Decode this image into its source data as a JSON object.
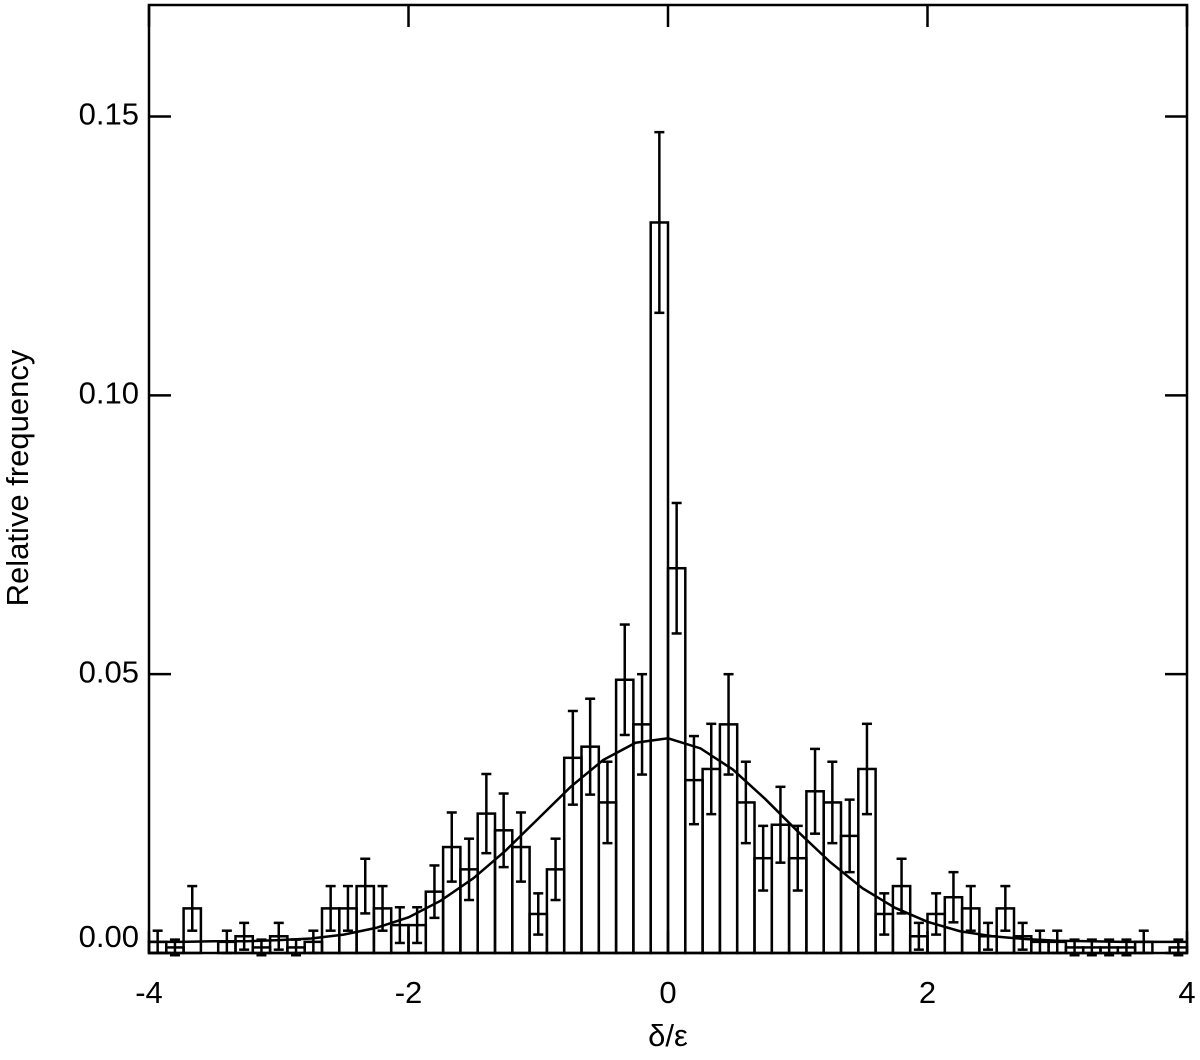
{
  "chart_data": {
    "type": "histogram",
    "xlabel": "δ/ε",
    "ylabel": "Relative frequency",
    "xlim": [
      -4,
      4
    ],
    "ylim": [
      0,
      0.17
    ],
    "xticks": [
      -4,
      -2,
      0,
      2,
      4
    ],
    "yticks": [
      {
        "value": 0,
        "label": "0.00"
      },
      {
        "value": 0.05,
        "label": "0.05"
      },
      {
        "value": 0.1,
        "label": "0.10"
      },
      {
        "value": 0.15,
        "label": "0.15"
      }
    ],
    "color": "#000000",
    "bins": [
      -4,
      -3.8667,
      -3.7333,
      -3.6,
      -3.4667,
      -3.3333,
      -3.2,
      -3.0667,
      -2.9333,
      -2.8,
      -2.6667,
      -2.5333,
      -2.4,
      -2.2667,
      -2.1333,
      -2,
      -1.8667,
      -1.7333,
      -1.6,
      -1.4667,
      -1.3333,
      -1.2,
      -1.0667,
      -0.9333,
      -0.8,
      -0.6667,
      -0.5333,
      -0.4,
      -0.2667,
      -0.1333,
      0,
      0.1333,
      0.2667,
      0.4,
      0.5333,
      0.6667,
      0.8,
      0.9333,
      1.0667,
      1.2,
      1.3333,
      1.4667,
      1.6,
      1.7333,
      1.8667,
      2,
      2.1333,
      2.2667,
      2.4,
      2.5333,
      2.6667,
      2.8,
      2.9333,
      3.0667,
      3.2,
      3.3333,
      3.4667,
      3.6,
      3.7333,
      3.8667,
      4
    ],
    "values": [
      0.002,
      0.001,
      0.008,
      0,
      0.002,
      0.003,
      0.001,
      0.003,
      0.001,
      0.002,
      0.008,
      0.008,
      0.012,
      0.008,
      0.005,
      0.005,
      0.011,
      0.019,
      0.015,
      0.025,
      0.022,
      0.019,
      0.007,
      0.015,
      0.035,
      0.037,
      0.027,
      0.049,
      0.041,
      0.131,
      0.069,
      0.031,
      0.033,
      0.041,
      0.027,
      0.017,
      0.023,
      0.017,
      0.029,
      0.027,
      0.021,
      0.033,
      0.007,
      0.012,
      0.003,
      0.007,
      0.01,
      0.008,
      0.003,
      0.008,
      0.003,
      0.002,
      0.002,
      0.001,
      0.001,
      0.001,
      0.001,
      0.002,
      0,
      0.001
    ],
    "errors": [
      0.002,
      0.0014,
      0.004,
      0,
      0.002,
      0.0024,
      0.0014,
      0.0024,
      0.0014,
      0.002,
      0.004,
      0.004,
      0.0049,
      0.004,
      0.0032,
      0.0032,
      0.0047,
      0.0062,
      0.0055,
      0.0071,
      0.0066,
      0.0062,
      0.0037,
      0.0055,
      0.0084,
      0.0086,
      0.0073,
      0.0099,
      0.009,
      0.0162,
      0.0117,
      0.0079,
      0.0081,
      0.009,
      0.0073,
      0.0058,
      0.0068,
      0.0058,
      0.0076,
      0.0073,
      0.0065,
      0.0081,
      0.0037,
      0.0049,
      0.0024,
      0.0037,
      0.0045,
      0.004,
      0.0024,
      0.004,
      0.0024,
      0.002,
      0.002,
      0.0014,
      0.0014,
      0.0014,
      0.0014,
      0.002,
      0,
      0.0014
    ],
    "fit": {
      "x": [
        -4,
        -3.75,
        -3.5,
        -3.25,
        -3,
        -2.75,
        -2.5,
        -2.25,
        -2,
        -1.75,
        -1.5,
        -1.25,
        -1,
        -0.75,
        -0.5,
        -0.25,
        0,
        0.25,
        0.5,
        0.75,
        1,
        1.25,
        1.5,
        1.75,
        2,
        2.25,
        2.5,
        2.75,
        3,
        3.25,
        3.5,
        3.75,
        4
      ],
      "y": [
        0.002,
        0.002,
        0.0021,
        0.0021,
        0.0023,
        0.0026,
        0.0033,
        0.0045,
        0.0064,
        0.0094,
        0.0134,
        0.0184,
        0.0241,
        0.0298,
        0.0346,
        0.0377,
        0.0385,
        0.0367,
        0.0329,
        0.0276,
        0.0218,
        0.0163,
        0.0116,
        0.0081,
        0.0056,
        0.0039,
        0.003,
        0.0025,
        0.0022,
        0.0021,
        0.002,
        0.002,
        0.002
      ]
    }
  }
}
